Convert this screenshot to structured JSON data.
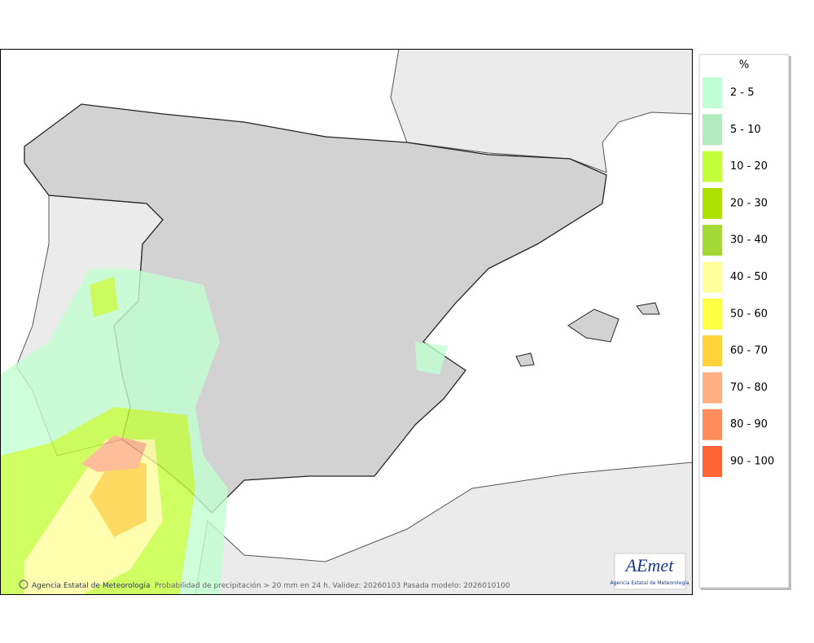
{
  "legend": {
    "title": "%",
    "items": [
      {
        "label": "2 - 5",
        "color": "#c2ffd2"
      },
      {
        "label": "5 - 10",
        "color": "#b4ebbe"
      },
      {
        "label": "10 - 20",
        "color": "#c4ff3c"
      },
      {
        "label": "20 - 30",
        "color": "#abe000"
      },
      {
        "label": "30 - 40",
        "color": "#a2d937"
      },
      {
        "label": "40 - 50",
        "color": "#ffff9c"
      },
      {
        "label": "50 - 60",
        "color": "#ffff46"
      },
      {
        "label": "60 - 70",
        "color": "#ffd23c"
      },
      {
        "label": "70 - 80",
        "color": "#ffaf82"
      },
      {
        "label": "80 - 90",
        "color": "#ff8c5a"
      },
      {
        "label": "90 - 100",
        "color": "#ff6432"
      }
    ]
  },
  "footer": {
    "credit": "Agencia Estatal de Meteorología",
    "caption": "Probabilidad de precipitación > 20 mm en 24 h. Validez: 20260103 Pasada modelo: 2026010100"
  },
  "logo": {
    "name": "AEmet",
    "subtitle": "Agencia Estatal de Meteorología"
  }
}
